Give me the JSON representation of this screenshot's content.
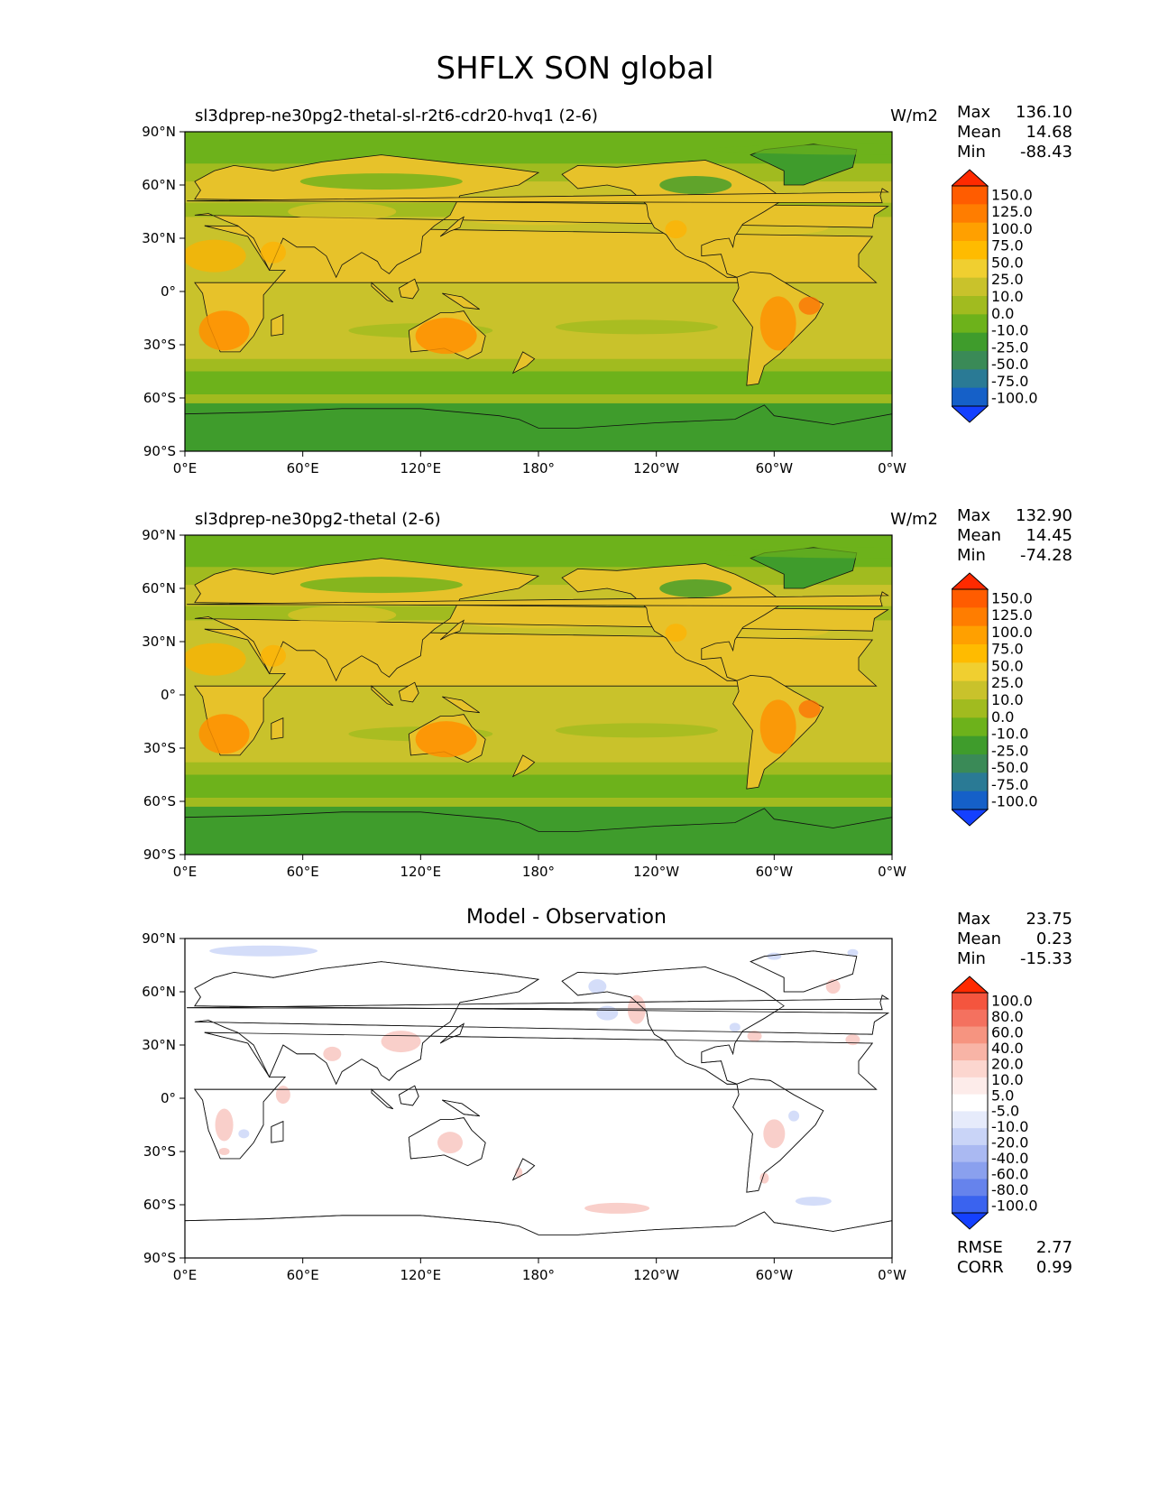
{
  "figure": {
    "title": "SHFLX SON global"
  },
  "panels": [
    {
      "id": "test",
      "title_left": "sl3dprep-ne30pg2-thetal-sl-r2t6-cdr20-hvq1 (2-6)",
      "title_center": "",
      "units": "W/m2",
      "stats": {
        "max_label": "Max",
        "max": "136.10",
        "mean_label": "Mean",
        "mean": "14.68",
        "min_label": "Min",
        "min": "-88.43"
      },
      "colorbar_labels": [
        "150.0",
        "125.0",
        "100.0",
        "75.0",
        "50.0",
        "25.0",
        "10.0",
        "0.0",
        "-10.0",
        "-25.0",
        "-50.0",
        "-75.0",
        "-100.0"
      ],
      "colors": {
        "ocean": "#c9c22b",
        "land": "#e7c22a",
        "high_lat": "#6db21b",
        "polar": "#3f9c2c"
      }
    },
    {
      "id": "reference",
      "title_left": "sl3dprep-ne30pg2-thetal (2-6)",
      "title_center": "",
      "units": "W/m2",
      "stats": {
        "max_label": "Max",
        "max": "132.90",
        "mean_label": "Mean",
        "mean": "14.45",
        "min_label": "Min",
        "min": "-74.28"
      },
      "colorbar_labels": [
        "150.0",
        "125.0",
        "100.0",
        "75.0",
        "50.0",
        "25.0",
        "10.0",
        "0.0",
        "-10.0",
        "-25.0",
        "-50.0",
        "-75.0",
        "-100.0"
      ],
      "colors": {
        "ocean": "#c9c22b",
        "land": "#e7c22a",
        "high_lat": "#6db21b",
        "polar": "#3f9c2c"
      }
    },
    {
      "id": "diff",
      "title_left": "",
      "title_center": "Model - Observation",
      "units": "",
      "stats": {
        "max_label": "Max",
        "max": "23.75",
        "mean_label": "Mean",
        "mean": "0.23",
        "min_label": "Min",
        "min": "-15.33"
      },
      "colorbar_labels": [
        "100.0",
        "80.0",
        "60.0",
        "40.0",
        "20.0",
        "10.0",
        "5.0",
        "-5.0",
        "-10.0",
        "-20.0",
        "-40.0",
        "-60.0",
        "-80.0",
        "-100.0"
      ],
      "colors": {
        "ocean": "#ffffff",
        "pos": "#f7c3bd",
        "neg": "#c9d4f7"
      }
    }
  ],
  "axes": {
    "x_ticks": [
      "0°E",
      "60°E",
      "120°E",
      "180°",
      "120°W",
      "60°W",
      "0°W"
    ],
    "y_ticks": [
      "90°N",
      "60°N",
      "30°N",
      "0°",
      "30°S",
      "60°S",
      "90°S"
    ]
  },
  "diff_stats": {
    "rmse_label": "RMSE",
    "rmse": "2.77",
    "corr_label": "CORR",
    "corr": "0.99"
  },
  "colormaps": {
    "field": [
      "#ff2a00",
      "#ff5c00",
      "#ff7d00",
      "#ffa000",
      "#ffbb00",
      "#f0cf30",
      "#c9c22b",
      "#a1bb1f",
      "#6db21b",
      "#3f9c2c",
      "#3a8a57",
      "#2a7a95",
      "#1560c8",
      "#1440ff"
    ],
    "diff": [
      "#ff2a00",
      "#f4553e",
      "#f4715f",
      "#f69480",
      "#f8b4a6",
      "#fcd6cf",
      "#fdecea",
      "#ffffff",
      "#e6ebfb",
      "#c9d4f7",
      "#aab9f2",
      "#8aa0ee",
      "#6683ec",
      "#3a63ef",
      "#1440ff"
    ]
  }
}
